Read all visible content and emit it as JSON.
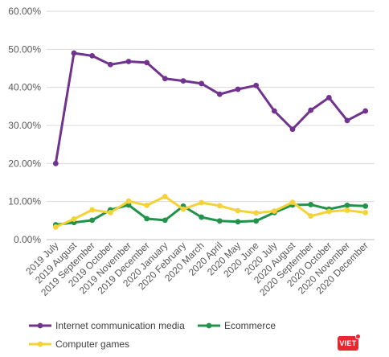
{
  "chart_data": {
    "type": "line",
    "title": "",
    "xlabel": "",
    "ylabel": "",
    "ylim": [
      0,
      60
    ],
    "y_ticks": [
      "0.00%",
      "10.00%",
      "20.00%",
      "30.00%",
      "40.00%",
      "50.00%",
      "60.00%"
    ],
    "grid": true,
    "legend_position": "bottom",
    "categories": [
      "2019 July",
      "2019 August",
      "2019 September",
      "2019 October",
      "2019 November",
      "2019 December",
      "2020 January",
      "2020 February",
      "2020 March",
      "2020 April",
      "2020 May",
      "2020 June",
      "2020 July",
      "2020 August",
      "2020 September",
      "2020 October",
      "2020 November",
      "2020 December"
    ],
    "series": [
      {
        "name": "Internet communication media",
        "color": "#71338f",
        "values": [
          20.0,
          49.0,
          48.3,
          46.0,
          46.8,
          46.5,
          42.3,
          41.7,
          41.0,
          38.2,
          39.5,
          40.5,
          33.8,
          29.0,
          34.0,
          37.3,
          31.3,
          33.8
        ]
      },
      {
        "name": "Ecommerce",
        "color": "#21934a",
        "values": [
          3.9,
          4.5,
          5.1,
          7.8,
          9.1,
          5.5,
          5.1,
          8.8,
          5.9,
          4.9,
          4.7,
          4.9,
          7.1,
          9.1,
          9.2,
          8.0,
          9.0,
          8.8
        ]
      },
      {
        "name": "Computer games",
        "color": "#f4d338",
        "values": [
          3.3,
          5.4,
          7.8,
          7.1,
          10.1,
          9.0,
          11.3,
          8.0,
          9.7,
          8.9,
          7.6,
          7.0,
          7.5,
          9.8,
          6.2,
          7.4,
          7.7,
          7.1
        ]
      }
    ]
  },
  "badge": {
    "label": "VIET"
  }
}
